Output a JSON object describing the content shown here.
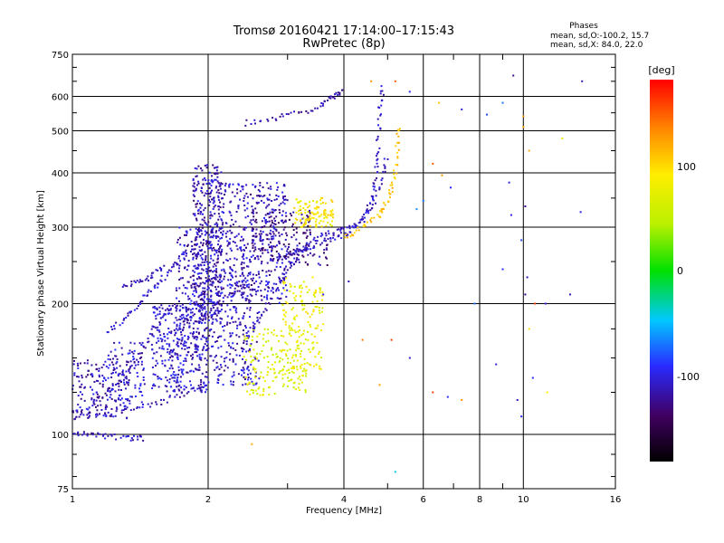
{
  "chart_data": {
    "type": "scatter",
    "title": "Tromsø 20160421 17:14:00–17:15:43",
    "subtitle": "RwPretec (8p)",
    "xlabel": "Frequency [MHz]",
    "ylabel": "Stationary phase Virtual Height [km]",
    "x_scale": "log",
    "y_scale": "log",
    "xlim": [
      1,
      16
    ],
    "ylim": [
      75,
      750
    ],
    "x_ticks": [
      "1",
      "2",
      "4",
      "6",
      "8",
      "10",
      "16"
    ],
    "y_ticks": [
      "75",
      "100",
      "200",
      "300",
      "400",
      "500",
      "600",
      "750"
    ],
    "grid": true,
    "stats": {
      "header": "Phases",
      "line_o": "mean, sd,O:-100.2, 15.7",
      "line_x": "mean, sd,X:  84.0, 22.0"
    },
    "colorbar": {
      "label": "[deg]",
      "range": [
        -180,
        180
      ],
      "ticks": [
        "100",
        "0",
        "-100"
      ]
    },
    "traces": [
      {
        "name": "",
        "phase": -110,
        "points": [
          [
            1.0,
            113
          ],
          [
            1.1,
            112
          ],
          [
            1.3,
            113
          ],
          [
            1.5,
            117
          ],
          [
            1.7,
            122
          ],
          [
            1.9,
            128
          ],
          [
            2.0,
            132
          ]
        ]
      },
      {
        "name": "",
        "phase": -110,
        "points": [
          [
            1.0,
            101
          ],
          [
            1.1,
            100
          ],
          [
            1.2,
            99
          ],
          [
            1.35,
            98
          ],
          [
            1.45,
            98
          ]
        ]
      },
      {
        "name": "",
        "phase": -115,
        "points": [
          [
            1.1,
            118
          ],
          [
            1.2,
            125
          ],
          [
            1.3,
            135
          ],
          [
            1.4,
            150
          ],
          [
            1.5,
            170
          ],
          [
            1.6,
            190
          ],
          [
            1.7,
            200
          ]
        ]
      },
      {
        "name": "",
        "phase": -110,
        "points": [
          [
            1.3,
            220
          ],
          [
            1.4,
            225
          ],
          [
            1.5,
            232
          ],
          [
            1.6,
            245
          ]
        ]
      },
      {
        "name": "",
        "phase": -105,
        "points": [
          [
            1.2,
            170
          ],
          [
            1.3,
            185
          ],
          [
            1.4,
            200
          ],
          [
            1.5,
            215
          ],
          [
            1.6,
            230
          ],
          [
            1.7,
            250
          ],
          [
            1.8,
            265
          ]
        ]
      },
      {
        "name": "",
        "phase": -110,
        "points": [
          [
            2.4,
            160
          ],
          [
            2.6,
            185
          ],
          [
            2.8,
            210
          ],
          [
            3.0,
            240
          ],
          [
            3.2,
            265
          ],
          [
            3.4,
            280
          ],
          [
            3.7,
            290
          ],
          [
            4.0,
            295
          ],
          [
            4.3,
            305
          ],
          [
            4.6,
            330
          ],
          [
            4.85,
            380
          ],
          [
            5.0,
            440
          ]
        ]
      },
      {
        "name": "",
        "phase": -105,
        "points": [
          [
            2.8,
            250
          ],
          [
            3.2,
            265
          ],
          [
            3.5,
            275
          ],
          [
            3.8,
            282
          ],
          [
            4.1,
            292
          ],
          [
            4.4,
            310
          ],
          [
            4.6,
            345
          ],
          [
            4.7,
            390
          ],
          [
            4.75,
            450
          ],
          [
            4.8,
            550
          ],
          [
            4.85,
            640
          ]
        ]
      },
      {
        "name": "",
        "phase": -115,
        "points": [
          [
            2.4,
            520
          ],
          [
            2.8,
            535
          ],
          [
            3.2,
            550
          ],
          [
            3.6,
            575
          ],
          [
            3.8,
            600
          ],
          [
            4.0,
            620
          ]
        ]
      },
      {
        "name": "",
        "phase": 110,
        "points": [
          [
            4.0,
            285
          ],
          [
            4.4,
            300
          ],
          [
            4.8,
            320
          ],
          [
            5.0,
            345
          ],
          [
            5.15,
            380
          ],
          [
            5.25,
            440
          ],
          [
            5.3,
            520
          ]
        ]
      },
      {
        "name": "",
        "phase": 95,
        "points": [
          [
            3.2,
            310
          ],
          [
            3.5,
            320
          ],
          [
            3.8,
            325
          ]
        ]
      }
    ],
    "clusters": [
      {
        "x_range": [
          1.0,
          1.35
        ],
        "y_range": [
          108,
          150
        ],
        "count": 160,
        "phase": -110
      },
      {
        "x_range": [
          1.2,
          1.45
        ],
        "y_range": [
          115,
          165
        ],
        "count": 90,
        "phase": -105
      },
      {
        "x_range": [
          1.5,
          2.0
        ],
        "y_range": [
          125,
          200
        ],
        "count": 320,
        "phase": -105
      },
      {
        "x_range": [
          1.7,
          2.05
        ],
        "y_range": [
          150,
          300
        ],
        "count": 240,
        "phase": -110
      },
      {
        "x_range": [
          1.85,
          2.15
        ],
        "y_range": [
          180,
          420
        ],
        "count": 380,
        "phase": -112
      },
      {
        "x_range": [
          2.05,
          2.6
        ],
        "y_range": [
          130,
          240
        ],
        "count": 240,
        "phase": -108
      },
      {
        "x_range": [
          2.1,
          3.0
        ],
        "y_range": [
          200,
          380
        ],
        "count": 420,
        "phase": -108
      },
      {
        "x_range": [
          2.5,
          3.4
        ],
        "y_range": [
          250,
          330
        ],
        "count": 140,
        "phase": -125
      },
      {
        "x_range": [
          2.4,
          3.3
        ],
        "y_range": [
          123,
          175
        ],
        "count": 170,
        "phase": 70
      },
      {
        "x_range": [
          2.9,
          3.6
        ],
        "y_range": [
          140,
          230
        ],
        "count": 150,
        "phase": 80
      },
      {
        "x_range": [
          3.1,
          3.8
        ],
        "y_range": [
          300,
          350
        ],
        "count": 90,
        "phase": 90
      },
      {
        "x_range": [
          3.0,
          3.7
        ],
        "y_range": [
          245,
          275
        ],
        "count": 40,
        "phase": -120
      }
    ],
    "scattered": [
      [
        4.6,
        650,
        130
      ],
      [
        5.2,
        650,
        150
      ],
      [
        6.5,
        580,
        110
      ],
      [
        7.3,
        560,
        -100
      ],
      [
        8.3,
        545,
        -80
      ],
      [
        9.0,
        580,
        -70
      ],
      [
        9.5,
        670,
        -120
      ],
      [
        10.0,
        540,
        130
      ],
      [
        10.0,
        510,
        120
      ],
      [
        10.3,
        450,
        120
      ],
      [
        12.2,
        480,
        80
      ],
      [
        13.5,
        650,
        -110
      ],
      [
        4.9,
        605,
        -120
      ],
      [
        5.6,
        615,
        -90
      ],
      [
        6.3,
        420,
        150
      ],
      [
        6.6,
        395,
        130
      ],
      [
        6.9,
        370,
        -90
      ],
      [
        9.3,
        380,
        -100
      ],
      [
        10.1,
        335,
        -120
      ],
      [
        9.9,
        280,
        -80
      ],
      [
        10.2,
        230,
        -110
      ],
      [
        10.1,
        210,
        -120
      ],
      [
        10.6,
        200,
        160
      ],
      [
        11.2,
        200,
        -100
      ],
      [
        12.7,
        210,
        -110
      ],
      [
        6.0,
        345,
        -70
      ],
      [
        5.8,
        330,
        -60
      ],
      [
        9.4,
        320,
        -100
      ],
      [
        10.3,
        175,
        100
      ],
      [
        9.7,
        120,
        -110
      ],
      [
        10.5,
        135,
        -90
      ],
      [
        11.3,
        125,
        90
      ],
      [
        6.3,
        125,
        160
      ],
      [
        6.8,
        122,
        -90
      ],
      [
        7.3,
        120,
        130
      ],
      [
        5.1,
        165,
        160
      ],
      [
        5.6,
        150,
        -100
      ],
      [
        9.9,
        110,
        -90
      ],
      [
        4.4,
        165,
        140
      ],
      [
        4.8,
        130,
        120
      ],
      [
        5.2,
        82,
        -40
      ],
      [
        2.5,
        95,
        120
      ],
      [
        3.6,
        210,
        -100
      ],
      [
        4.1,
        225,
        -110
      ],
      [
        8.7,
        145,
        -100
      ],
      [
        13.4,
        325,
        -100
      ],
      [
        9.0,
        240,
        -90
      ],
      [
        7.8,
        200,
        -70
      ]
    ]
  }
}
